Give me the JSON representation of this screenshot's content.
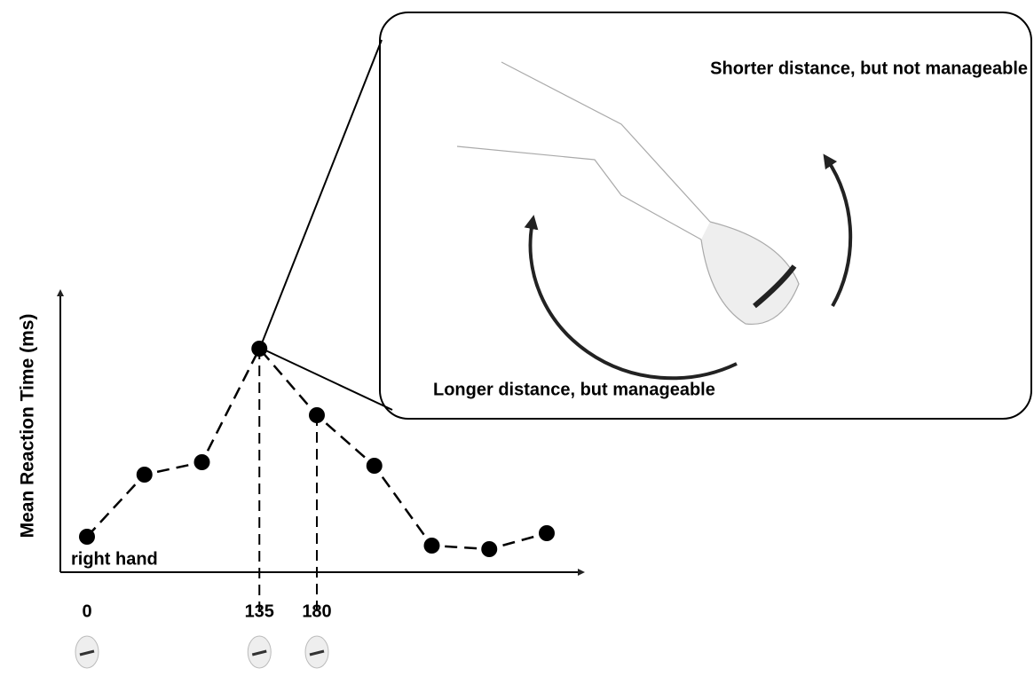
{
  "chart_data": {
    "type": "line",
    "y_label": "Mean Reaction Time (ms)",
    "categories": [
      "0",
      null,
      null,
      "135",
      "180",
      null,
      null,
      null,
      null
    ],
    "values": [
      40,
      110,
      124,
      252,
      177,
      120,
      30,
      26,
      44
    ],
    "ylim": [
      0,
      325
    ],
    "color": "#000000",
    "annotation": "right hand",
    "callout": {
      "top_label": "Shorter distance, but not manageable",
      "bottom_label": "Longer distance, but manageable"
    }
  }
}
